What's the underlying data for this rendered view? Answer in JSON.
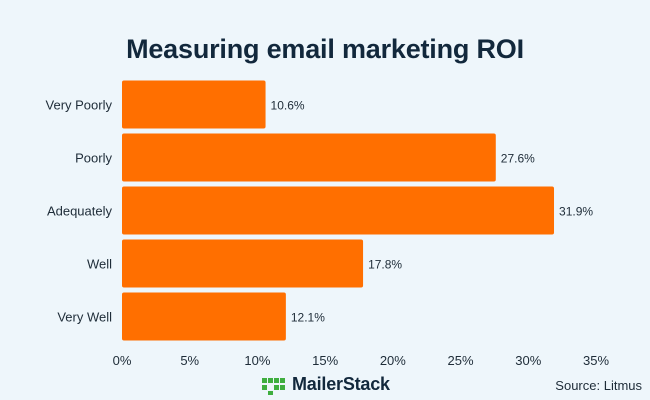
{
  "chart_data": {
    "type": "bar",
    "orientation": "horizontal",
    "title": "Measuring email marketing ROI",
    "categories": [
      "Very Poorly",
      "Poorly",
      "Adequately",
      "Well",
      "Very Well"
    ],
    "values": [
      10.6,
      27.6,
      31.9,
      17.8,
      12.1
    ],
    "value_labels": [
      "10.6%",
      "27.6%",
      "31.9%",
      "17.8%",
      "12.1%"
    ],
    "xlim": [
      0,
      35
    ],
    "xticks": [
      "0%",
      "5%",
      "10%",
      "15%",
      "20%",
      "25%",
      "30%",
      "35%"
    ],
    "xlabel": "",
    "ylabel": "",
    "grid": false,
    "bar_color": "#ff6f00"
  },
  "footer": {
    "brand": "MailerStack",
    "source": "Source: Litmus"
  },
  "colors": {
    "background": "#eef6fb",
    "bar": "#ff6f00",
    "text": "#1e2c38",
    "brand_green": "#3fae3f"
  }
}
